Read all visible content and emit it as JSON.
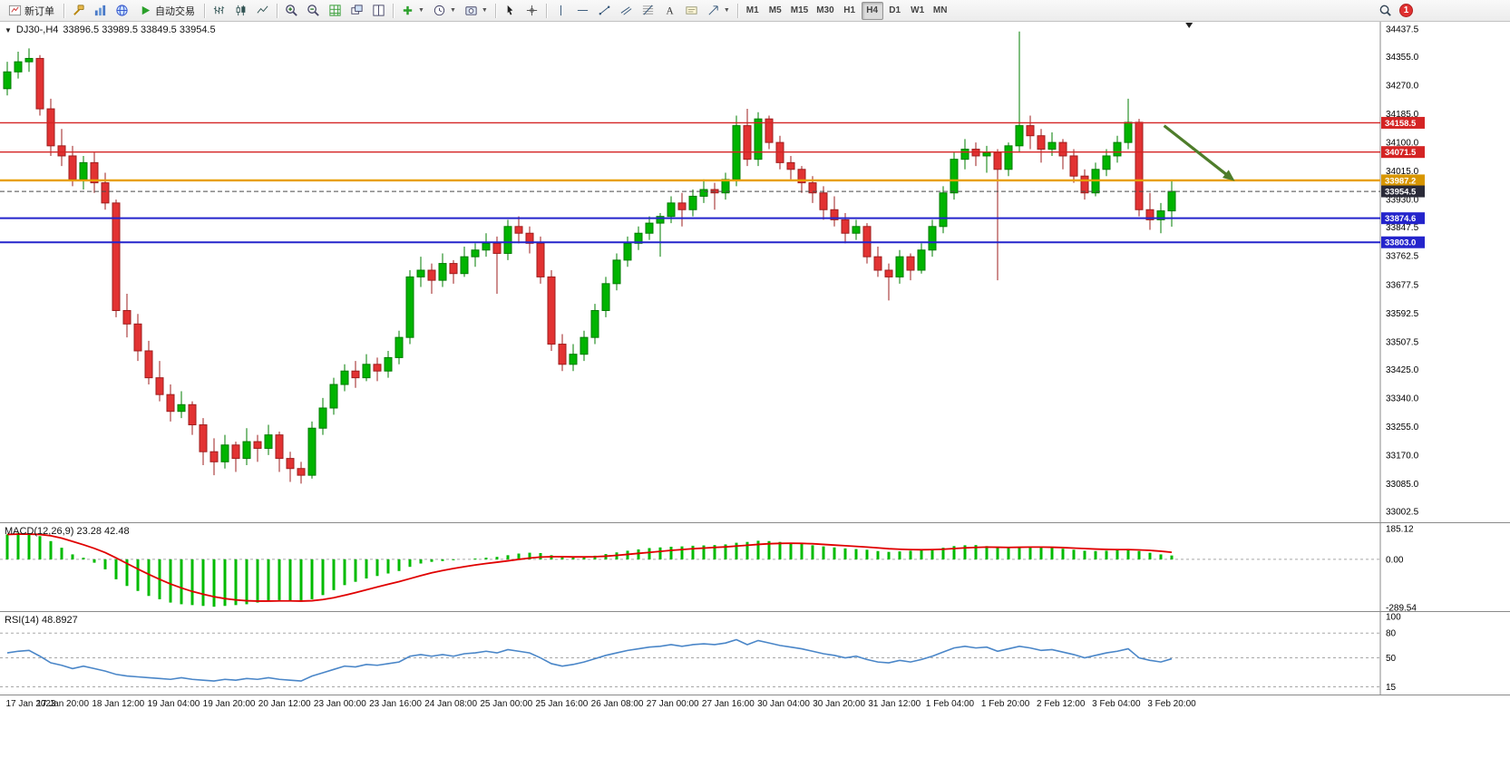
{
  "toolbar": {
    "new_order_label": "新订单",
    "auto_trading_label": "自动交易",
    "timeframes": [
      "M1",
      "M5",
      "M15",
      "M30",
      "H1",
      "H4",
      "D1",
      "W1",
      "MN"
    ],
    "active_timeframe": "H4",
    "notification_count": "1"
  },
  "chart": {
    "title_symbol": "DJ30-,H4",
    "title_ohlc": "33896.5 33989.5 33849.5 33954.5",
    "colors": {
      "up": "#00b400",
      "up_border": "#007c00",
      "down": "#e23232",
      "down_border": "#9e1e1e",
      "macd_hist": "#00bb00",
      "macd_signal": "#e00000",
      "rsi_line": "#4a86c8",
      "arrow": "#4e7d2a",
      "line_red": "#d42424",
      "line_blue": "#2424cc",
      "line_orange": "#e8a000",
      "bid_line": "#4a4a4a"
    }
  },
  "chart_data": {
    "type": "candlestick",
    "symbol": "DJ30-",
    "timeframe": "H4",
    "last_ohlc": {
      "open": 33896.5,
      "high": 33989.5,
      "low": 33849.5,
      "close": 33954.5
    },
    "price_axis": {
      "min": 33002.5,
      "max": 34437.5,
      "labels": [
        "34437.5",
        "34355.0",
        "34270.0",
        "34185.0",
        "34100.0",
        "34015.0",
        "33930.0",
        "33847.5",
        "33762.5",
        "33677.5",
        "33592.5",
        "33507.5",
        "33425.0",
        "33340.0",
        "33255.0",
        "33170.0",
        "33085.0",
        "33002.5"
      ]
    },
    "time_labels": [
      "17 Jan 2023",
      "17 Jan 20:00",
      "18 Jan 12:00",
      "19 Jan 04:00",
      "19 Jan 20:00",
      "20 Jan 12:00",
      "23 Jan 00:00",
      "23 Jan 16:00",
      "24 Jan 08:00",
      "25 Jan 00:00",
      "25 Jan 16:00",
      "26 Jan 08:00",
      "27 Jan 00:00",
      "27 Jan 16:00",
      "30 Jan 04:00",
      "30 Jan 20:00",
      "31 Jan 12:00",
      "1 Feb 04:00",
      "1 Feb 20:00",
      "2 Feb 12:00",
      "3 Feb 04:00",
      "3 Feb 20:00"
    ],
    "candles": [
      [
        34260,
        34340,
        34240,
        34310
      ],
      [
        34310,
        34370,
        34290,
        34340
      ],
      [
        34340,
        34380,
        34310,
        34350
      ],
      [
        34350,
        34360,
        34180,
        34200
      ],
      [
        34200,
        34230,
        34060,
        34090
      ],
      [
        34090,
        34140,
        34030,
        34060
      ],
      [
        34060,
        34090,
        33970,
        33990
      ],
      [
        33990,
        34060,
        33960,
        34040
      ],
      [
        34040,
        34070,
        33950,
        33980
      ],
      [
        33980,
        34010,
        33900,
        33920
      ],
      [
        33920,
        33930,
        33580,
        33600
      ],
      [
        33600,
        33650,
        33520,
        33560
      ],
      [
        33560,
        33590,
        33450,
        33480
      ],
      [
        33480,
        33510,
        33380,
        33400
      ],
      [
        33400,
        33450,
        33330,
        33350
      ],
      [
        33350,
        33380,
        33270,
        33300
      ],
      [
        33300,
        33360,
        33280,
        33320
      ],
      [
        33320,
        33330,
        33230,
        33260
      ],
      [
        33260,
        33280,
        33140,
        33180
      ],
      [
        33180,
        33220,
        33110,
        33150
      ],
      [
        33150,
        33230,
        33130,
        33200
      ],
      [
        33200,
        33210,
        33120,
        33160
      ],
      [
        33160,
        33250,
        33140,
        33210
      ],
      [
        33210,
        33230,
        33150,
        33190
      ],
      [
        33190,
        33260,
        33170,
        33230
      ],
      [
        33230,
        33240,
        33120,
        33160
      ],
      [
        33160,
        33180,
        33090,
        33130
      ],
      [
        33130,
        33150,
        33085,
        33110
      ],
      [
        33110,
        33270,
        33100,
        33250
      ],
      [
        33250,
        33340,
        33230,
        33310
      ],
      [
        33310,
        33400,
        33290,
        33380
      ],
      [
        33380,
        33440,
        33360,
        33420
      ],
      [
        33420,
        33450,
        33370,
        33400
      ],
      [
        33400,
        33470,
        33390,
        33440
      ],
      [
        33440,
        33460,
        33390,
        33420
      ],
      [
        33420,
        33480,
        33400,
        33460
      ],
      [
        33460,
        33540,
        33440,
        33520
      ],
      [
        33520,
        33720,
        33500,
        33700
      ],
      [
        33700,
        33760,
        33670,
        33720
      ],
      [
        33720,
        33740,
        33650,
        33690
      ],
      [
        33690,
        33770,
        33670,
        33740
      ],
      [
        33740,
        33750,
        33680,
        33710
      ],
      [
        33710,
        33790,
        33700,
        33760
      ],
      [
        33760,
        33800,
        33730,
        33780
      ],
      [
        33780,
        33830,
        33760,
        33800
      ],
      [
        33800,
        33820,
        33650,
        33770
      ],
      [
        33770,
        33870,
        33750,
        33850
      ],
      [
        33850,
        33880,
        33800,
        33830
      ],
      [
        33830,
        33850,
        33770,
        33800
      ],
      [
        33800,
        33820,
        33680,
        33700
      ],
      [
        33700,
        33720,
        33480,
        33500
      ],
      [
        33500,
        33530,
        33420,
        33440
      ],
      [
        33440,
        33500,
        33420,
        33470
      ],
      [
        33470,
        33540,
        33450,
        33520
      ],
      [
        33520,
        33620,
        33500,
        33600
      ],
      [
        33600,
        33700,
        33580,
        33680
      ],
      [
        33680,
        33770,
        33660,
        33750
      ],
      [
        33750,
        33820,
        33730,
        33800
      ],
      [
        33800,
        33850,
        33780,
        33830
      ],
      [
        33830,
        33880,
        33810,
        33860
      ],
      [
        33860,
        33890,
        33760,
        33880
      ],
      [
        33880,
        33940,
        33860,
        33920
      ],
      [
        33920,
        33950,
        33850,
        33900
      ],
      [
        33900,
        33960,
        33880,
        33940
      ],
      [
        33940,
        33990,
        33920,
        33960
      ],
      [
        33960,
        33980,
        33900,
        33950
      ],
      [
        33950,
        34010,
        33930,
        33990
      ],
      [
        33990,
        34180,
        33970,
        34150
      ],
      [
        34150,
        34200,
        34030,
        34050
      ],
      [
        34050,
        34190,
        34030,
        34170
      ],
      [
        34170,
        34180,
        34080,
        34100
      ],
      [
        34100,
        34120,
        34020,
        34040
      ],
      [
        34040,
        34060,
        33990,
        34020
      ],
      [
        34020,
        34030,
        33950,
        33980
      ],
      [
        33980,
        34000,
        33920,
        33950
      ],
      [
        33950,
        33970,
        33870,
        33900
      ],
      [
        33900,
        33940,
        33850,
        33870
      ],
      [
        33870,
        33890,
        33800,
        33830
      ],
      [
        33830,
        33870,
        33810,
        33850
      ],
      [
        33850,
        33860,
        33740,
        33760
      ],
      [
        33760,
        33790,
        33700,
        33720
      ],
      [
        33720,
        33740,
        33630,
        33700
      ],
      [
        33700,
        33780,
        33680,
        33760
      ],
      [
        33760,
        33770,
        33690,
        33720
      ],
      [
        33720,
        33800,
        33710,
        33780
      ],
      [
        33780,
        33870,
        33760,
        33850
      ],
      [
        33850,
        33970,
        33830,
        33950
      ],
      [
        33950,
        34070,
        33930,
        34050
      ],
      [
        34050,
        34110,
        34020,
        34080
      ],
      [
        34080,
        34100,
        34030,
        34060
      ],
      [
        34060,
        34090,
        34010,
        34070
      ],
      [
        34070,
        34080,
        33690,
        34020
      ],
      [
        34020,
        34100,
        34000,
        34090
      ],
      [
        34090,
        34430,
        34070,
        34150
      ],
      [
        34150,
        34180,
        34080,
        34120
      ],
      [
        34120,
        34140,
        34040,
        34080
      ],
      [
        34080,
        34130,
        34060,
        34100
      ],
      [
        34100,
        34110,
        34020,
        34060
      ],
      [
        34060,
        34080,
        33980,
        34000
      ],
      [
        34000,
        34020,
        33930,
        33950
      ],
      [
        33950,
        34040,
        33940,
        34020
      ],
      [
        34020,
        34080,
        34000,
        34060
      ],
      [
        34060,
        34120,
        34040,
        34100
      ],
      [
        34100,
        34230,
        34080,
        34160
      ],
      [
        34160,
        34170,
        33880,
        33900
      ],
      [
        33900,
        33950,
        33840,
        33870
      ],
      [
        33870,
        33920,
        33830,
        33896.5
      ],
      [
        33896.5,
        33989.5,
        33849.5,
        33954.5
      ]
    ],
    "hlines": [
      {
        "price": 34158.5,
        "label": "34158.5",
        "color": "#d42424",
        "tag_bg": "#d42424",
        "width": 1.4
      },
      {
        "price": 34071.5,
        "label": "34071.5",
        "color": "#d42424",
        "tag_bg": "#d42424",
        "width": 1.4
      },
      {
        "price": 33987.2,
        "label": "33987.2",
        "color": "#e8a000",
        "tag_bg": "#d89600",
        "width": 2.4
      },
      {
        "price": 33874.6,
        "label": "33874.6",
        "color": "#2424cc",
        "tag_bg": "#2424cc",
        "width": 2
      },
      {
        "price": 33803.0,
        "label": "33803.0",
        "color": "#2424cc",
        "tag_bg": "#2424cc",
        "width": 2
      },
      {
        "price": 33954.5,
        "label": "33954.5",
        "color": "#4a4a4a",
        "tag_bg": "#2a2a38",
        "width": 1,
        "style": "dashed"
      }
    ],
    "annotation_arrow": {
      "from": [
        106.3,
        34150
      ],
      "to": [
        112.8,
        33985
      ]
    },
    "shift_marker_index": 108.6,
    "indicators": {
      "macd": {
        "label": "MACD(12,26,9) 23.28 42.48",
        "max": 185.12,
        "min": -289.54,
        "axis_labels": [
          "185.12",
          "0.00",
          "-289.54"
        ],
        "histogram": [
          150,
          160,
          155,
          140,
          110,
          70,
          30,
          10,
          -20,
          -60,
          -120,
          -160,
          -190,
          -220,
          -240,
          -260,
          -270,
          -275,
          -280,
          -285,
          -280,
          -275,
          -270,
          -260,
          -250,
          -245,
          -250,
          -255,
          -240,
          -215,
          -185,
          -155,
          -135,
          -115,
          -100,
          -85,
          -70,
          -45,
          -25,
          -15,
          -10,
          -5,
          0,
          5,
          10,
          15,
          25,
          35,
          40,
          38,
          25,
          15,
          12,
          15,
          22,
          32,
          42,
          52,
          60,
          68,
          72,
          76,
          78,
          82,
          84,
          86,
          90,
          100,
          105,
          112,
          110,
          105,
          98,
          92,
          85,
          78,
          72,
          66,
          62,
          58,
          50,
          45,
          48,
          52,
          56,
          62,
          70,
          80,
          85,
          86,
          80,
          70,
          68,
          75,
          78,
          74,
          70,
          64,
          58,
          52,
          50,
          52,
          56,
          60,
          50,
          40,
          30,
          23.28
        ],
        "signal": [
          150,
          152,
          152,
          150,
          142,
          128,
          108,
          88,
          66,
          41,
          9,
          -25,
          -58,
          -90,
          -120,
          -148,
          -172,
          -193,
          -210,
          -225,
          -236,
          -244,
          -249,
          -251,
          -251,
          -250,
          -250,
          -251,
          -249,
          -242,
          -231,
          -216,
          -200,
          -183,
          -166,
          -150,
          -134,
          -116,
          -98,
          -81,
          -67,
          -55,
          -44,
          -34,
          -25,
          -17,
          -9,
          0,
          8,
          14,
          16,
          16,
          15,
          15,
          16,
          19,
          24,
          30,
          36,
          42,
          48,
          54,
          59,
          64,
          68,
          72,
          75,
          80,
          85,
          90,
          94,
          96,
          97,
          96,
          94,
          90,
          86,
          82,
          78,
          74,
          69,
          64,
          61,
          59,
          58,
          59,
          61,
          65,
          69,
          72,
          74,
          73,
          72,
          73,
          74,
          74,
          73,
          71,
          68,
          65,
          62,
          60,
          59,
          59,
          57,
          54,
          49,
          42.48
        ]
      },
      "rsi": {
        "label": "RSI(14) 48.8927",
        "max": 100,
        "min": 10,
        "axis_labels": [
          "100",
          "80",
          "50",
          "15"
        ],
        "levels": [
          80,
          50,
          15
        ],
        "values": [
          56,
          58,
          59,
          52,
          44,
          41,
          37,
          40,
          37,
          34,
          30,
          28,
          27,
          26,
          25,
          24,
          26,
          24,
          23,
          22,
          24,
          23,
          25,
          24,
          26,
          24,
          23,
          22,
          28,
          32,
          36,
          40,
          39,
          42,
          41,
          43,
          45,
          52,
          54,
          52,
          54,
          52,
          55,
          56,
          58,
          56,
          60,
          58,
          56,
          50,
          43,
          40,
          42,
          45,
          49,
          53,
          56,
          59,
          61,
          63,
          64,
          66,
          64,
          66,
          67,
          66,
          68,
          72,
          66,
          71,
          68,
          65,
          63,
          61,
          58,
          55,
          53,
          50,
          52,
          48,
          45,
          44,
          47,
          45,
          48,
          52,
          57,
          62,
          64,
          62,
          63,
          58,
          61,
          64,
          62,
          59,
          60,
          57,
          54,
          50,
          53,
          56,
          58,
          61,
          50,
          47,
          45,
          48.89
        ]
      }
    }
  }
}
